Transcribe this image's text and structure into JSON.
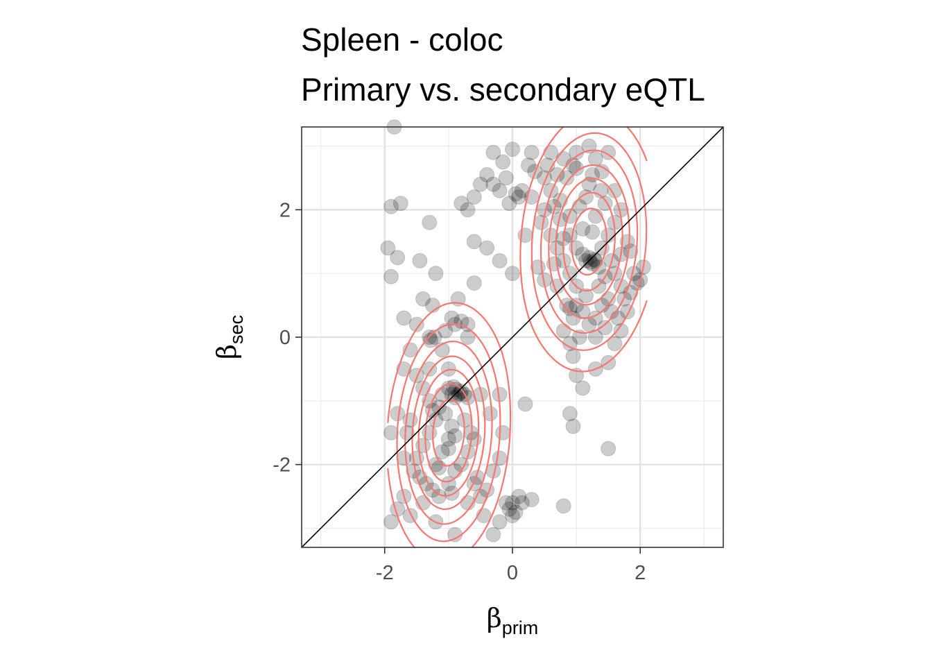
{
  "chart_data": {
    "type": "scatter",
    "title_lines": [
      "Spleen - coloc",
      "Primary vs. secondary eQTL"
    ],
    "x_axis": {
      "label_symbol": "β",
      "label_subscript": "prim",
      "range": [
        -3.3,
        3.3
      ],
      "ticks": [
        -2,
        0,
        2
      ],
      "tick_labels": [
        "-2",
        "0",
        "2"
      ]
    },
    "y_axis": {
      "label_symbol": "β",
      "label_subscript": "sec",
      "range": [
        -3.3,
        3.3
      ],
      "ticks": [
        -2,
        0,
        2
      ],
      "tick_labels": [
        "-2",
        "0",
        "2"
      ]
    },
    "grid": true,
    "reference_line": {
      "slope": 1,
      "intercept": 0,
      "color": "#000000"
    },
    "point_color": "#000000",
    "point_opacity": 0.2,
    "contour_color": "#f8766d",
    "density_clusters": [
      {
        "center": [
          -1.0,
          -1.5
        ],
        "sd": [
          0.45,
          0.95
        ],
        "rho": 0.1,
        "weight": 1.0
      },
      {
        "center": [
          1.2,
          1.5
        ],
        "sd": [
          0.5,
          0.95
        ],
        "rho": 0.1,
        "weight": 1.0
      }
    ],
    "points": [
      [
        -1.85,
        3.3
      ],
      [
        -1.9,
        2.05
      ],
      [
        -1.75,
        2.1
      ],
      [
        -1.95,
        1.4
      ],
      [
        -1.8,
        1.25
      ],
      [
        -1.45,
        1.2
      ],
      [
        -1.2,
        1.0
      ],
      [
        -1.3,
        1.8
      ],
      [
        -1.9,
        0.95
      ],
      [
        -1.4,
        0.6
      ],
      [
        -1.25,
        0.5
      ],
      [
        -0.85,
        0.6
      ],
      [
        -0.6,
        0.85
      ],
      [
        -1.7,
        0.3
      ],
      [
        -1.5,
        0.2
      ],
      [
        -1.3,
        0.0
      ],
      [
        -1.28,
        -0.05
      ],
      [
        -1.22,
        0.0
      ],
      [
        -1.05,
        0.1
      ],
      [
        -0.95,
        0.3
      ],
      [
        -0.9,
        0.2
      ],
      [
        -0.8,
        0.25
      ],
      [
        -0.7,
        0.2
      ],
      [
        -1.6,
        -0.2
      ],
      [
        -1.7,
        -0.5
      ],
      [
        -1.5,
        -0.6
      ],
      [
        -1.4,
        -0.8
      ],
      [
        -1.3,
        -1.0
      ],
      [
        -1.1,
        -0.9
      ],
      [
        -1.0,
        -0.8
      ],
      [
        -0.95,
        -0.9
      ],
      [
        -0.9,
        -0.95
      ],
      [
        -0.85,
        -0.9
      ],
      [
        -0.8,
        -0.85
      ],
      [
        -0.75,
        -0.9
      ],
      [
        -0.7,
        -0.95
      ],
      [
        -0.88,
        -0.82
      ],
      [
        -0.92,
        -0.78
      ],
      [
        -0.82,
        -0.88
      ],
      [
        -1.15,
        -1.1
      ],
      [
        -1.2,
        -1.3
      ],
      [
        -1.05,
        -1.2
      ],
      [
        -0.95,
        -1.4
      ],
      [
        -1.0,
        -1.6
      ],
      [
        -1.1,
        -1.8
      ],
      [
        -1.2,
        -2.0
      ],
      [
        -1.3,
        -1.5
      ],
      [
        -1.4,
        -1.7
      ],
      [
        -1.5,
        -1.9
      ],
      [
        -1.6,
        -1.3
      ],
      [
        -1.65,
        -1.5
      ],
      [
        -1.7,
        -1.9
      ],
      [
        -1.8,
        -1.2
      ],
      [
        -1.9,
        -1.5
      ],
      [
        -1.55,
        -2.1
      ],
      [
        -1.45,
        -2.2
      ],
      [
        -1.35,
        -2.3
      ],
      [
        -1.25,
        -2.4
      ],
      [
        -1.15,
        -2.5
      ],
      [
        -1.0,
        -2.3
      ],
      [
        -0.9,
        -2.1
      ],
      [
        -0.8,
        -2.0
      ],
      [
        -0.7,
        -1.8
      ],
      [
        -0.6,
        -1.6
      ],
      [
        -0.55,
        -2.2
      ],
      [
        -0.5,
        -2.5
      ],
      [
        -0.45,
        -2.8
      ],
      [
        -0.4,
        -2.4
      ],
      [
        -0.3,
        -2.1
      ],
      [
        -0.2,
        -1.9
      ],
      [
        -0.35,
        -1.2
      ],
      [
        -0.2,
        -0.9
      ],
      [
        -0.15,
        -1.5
      ],
      [
        -1.9,
        -2.9
      ],
      [
        -1.8,
        -2.7
      ],
      [
        -1.7,
        -2.5
      ],
      [
        -1.6,
        -2.8
      ],
      [
        -1.4,
        -2.6
      ],
      [
        -1.2,
        -2.9
      ],
      [
        -0.9,
        -3.1
      ],
      [
        -0.7,
        -2.6
      ],
      [
        -0.6,
        -2.3
      ],
      [
        -0.3,
        -3.1
      ],
      [
        -0.2,
        -2.9
      ],
      [
        -0.05,
        -2.7
      ],
      [
        0.0,
        -2.6
      ],
      [
        0.05,
        -2.75
      ],
      [
        0.1,
        -2.5
      ],
      [
        -0.1,
        -2.6
      ],
      [
        0.15,
        -2.6
      ],
      [
        0.3,
        -2.55
      ],
      [
        0.8,
        -2.65
      ],
      [
        0.0,
        -2.8
      ],
      [
        -0.5,
        -0.9
      ],
      [
        -0.7,
        0.0
      ],
      [
        0.2,
        -1.05
      ],
      [
        -1.3,
        -0.5
      ],
      [
        -1.1,
        -0.2
      ],
      [
        -1.0,
        -0.5
      ],
      [
        -1.25,
        -1.15
      ],
      [
        -0.75,
        -1.3
      ],
      [
        -0.65,
        -1.5
      ],
      [
        -0.9,
        -1.55
      ],
      [
        -1.0,
        -1.75
      ],
      [
        -1.15,
        -2.05
      ],
      [
        -0.95,
        -2.45
      ],
      [
        0.6,
        2.9
      ],
      [
        0.8,
        2.8
      ],
      [
        1.0,
        2.9
      ],
      [
        1.2,
        3.0
      ],
      [
        1.3,
        2.8
      ],
      [
        1.5,
        2.9
      ],
      [
        1.4,
        2.6
      ],
      [
        1.2,
        2.4
      ],
      [
        1.0,
        2.65
      ],
      [
        0.95,
        2.7
      ],
      [
        0.85,
        2.5
      ],
      [
        0.7,
        2.55
      ],
      [
        0.5,
        2.5
      ],
      [
        0.3,
        2.2
      ],
      [
        0.15,
        2.3
      ],
      [
        0.05,
        2.25
      ],
      [
        0.1,
        2.2
      ],
      [
        -0.05,
        2.1
      ],
      [
        -0.1,
        2.5
      ],
      [
        -0.2,
        2.3
      ],
      [
        -0.3,
        2.4
      ],
      [
        -0.4,
        2.55
      ],
      [
        -0.5,
        2.4
      ],
      [
        -0.6,
        2.2
      ],
      [
        -0.7,
        2.0
      ],
      [
        -0.8,
        2.1
      ],
      [
        -0.3,
        2.9
      ],
      [
        0.0,
        2.95
      ],
      [
        0.3,
        2.9
      ],
      [
        0.6,
        2.3
      ],
      [
        0.5,
        2.0
      ],
      [
        0.45,
        1.8
      ],
      [
        0.6,
        1.6
      ],
      [
        0.7,
        1.4
      ],
      [
        0.8,
        1.2
      ],
      [
        0.9,
        1.0
      ],
      [
        1.0,
        0.8
      ],
      [
        1.1,
        1.3
      ],
      [
        1.15,
        1.2
      ],
      [
        1.2,
        1.25
      ],
      [
        1.25,
        1.15
      ],
      [
        1.3,
        1.2
      ],
      [
        1.35,
        1.1
      ],
      [
        1.28,
        1.22
      ],
      [
        1.22,
        1.18
      ],
      [
        1.4,
        1.4
      ],
      [
        1.5,
        1.6
      ],
      [
        1.6,
        1.8
      ],
      [
        1.7,
        2.0
      ],
      [
        1.45,
        2.1
      ],
      [
        1.3,
        1.9
      ],
      [
        1.1,
        1.7
      ],
      [
        0.9,
        1.9
      ],
      [
        0.75,
        1.85
      ],
      [
        0.65,
        2.05
      ],
      [
        1.55,
        1.2
      ],
      [
        1.6,
        1.0
      ],
      [
        1.7,
        0.8
      ],
      [
        1.75,
        0.6
      ],
      [
        1.8,
        0.4
      ],
      [
        1.85,
        0.7
      ],
      [
        1.9,
        1.0
      ],
      [
        1.95,
        0.85
      ],
      [
        2.05,
        1.1
      ],
      [
        2.0,
        0.9
      ],
      [
        1.5,
        0.6
      ],
      [
        1.4,
        0.5
      ],
      [
        1.3,
        0.3
      ],
      [
        1.1,
        0.4
      ],
      [
        1.0,
        0.5
      ],
      [
        0.9,
        0.45
      ],
      [
        0.85,
        0.5
      ],
      [
        0.95,
        0.3
      ],
      [
        0.8,
        0.1
      ],
      [
        0.9,
        -0.1
      ],
      [
        0.95,
        -0.3
      ],
      [
        1.0,
        -0.6
      ],
      [
        1.1,
        -0.8
      ],
      [
        1.3,
        -0.5
      ],
      [
        1.5,
        -0.4
      ],
      [
        1.6,
        -0.1
      ],
      [
        1.7,
        0.1
      ],
      [
        0.9,
        -1.2
      ],
      [
        0.95,
        -1.4
      ],
      [
        1.5,
        -1.75
      ],
      [
        0.2,
        1.6
      ],
      [
        0.0,
        1.0
      ],
      [
        -0.2,
        1.2
      ],
      [
        -0.4,
        1.4
      ],
      [
        -0.6,
        1.5
      ],
      [
        0.4,
        1.1
      ],
      [
        0.5,
        0.9
      ],
      [
        0.7,
        0.8
      ],
      [
        1.05,
        0.0
      ],
      [
        1.2,
        0.2
      ],
      [
        1.35,
        0.8
      ],
      [
        1.45,
        0.95
      ],
      [
        1.55,
        0.4
      ],
      [
        1.65,
        0.3
      ],
      [
        1.8,
        1.5
      ],
      [
        1.85,
        1.35
      ],
      [
        0.9,
        1.6
      ],
      [
        1.05,
        2.05
      ],
      [
        1.25,
        2.55
      ],
      [
        1.6,
        2.3
      ],
      [
        0.35,
        2.6
      ],
      [
        0.25,
        2.7
      ],
      [
        -0.15,
        2.75
      ],
      [
        0.55,
        2.7
      ],
      [
        0.75,
        2.15
      ],
      [
        1.15,
        2.2
      ],
      [
        1.38,
        2.3
      ],
      [
        1.7,
        1.3
      ],
      [
        1.25,
        1.65
      ],
      [
        1.0,
        1.4
      ],
      [
        0.8,
        1.55
      ],
      [
        0.65,
        1.15
      ],
      [
        1.15,
        0.65
      ],
      [
        1.3,
        0.0
      ],
      [
        1.45,
        0.15
      ]
    ]
  }
}
